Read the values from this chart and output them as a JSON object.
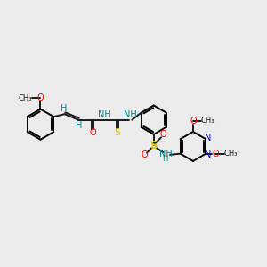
{
  "background_color": "#ebebeb",
  "bond_color": "#1a1a1a",
  "atom_colors": {
    "O": "#ff0000",
    "N": "#0000ee",
    "S": "#cccc00",
    "H_label": "#008080",
    "C_label": "#1a1a1a"
  },
  "figsize": [
    3.0,
    3.0
  ],
  "dpi": 100,
  "xlim": [
    0,
    10
  ],
  "ylim": [
    0,
    10
  ]
}
